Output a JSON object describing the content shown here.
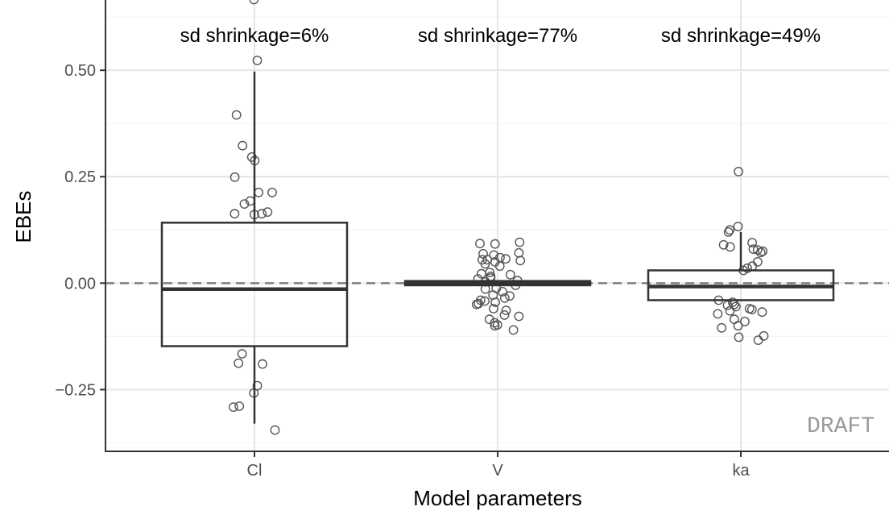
{
  "chart_data": {
    "type": "boxplot",
    "xlabel": "Model parameters",
    "ylabel": "EBEs",
    "categories": [
      "Cl",
      "V",
      "ka"
    ],
    "ylim": [
      -0.395,
      0.665
    ],
    "yticks": [
      -0.25,
      0.0,
      0.25,
      0.5
    ],
    "ytick_labels": [
      "−0.25",
      "0.00",
      "0.25",
      "0.50"
    ],
    "reference_line": 0,
    "grid": true,
    "watermark": "DRAFT",
    "annotations": [
      "sd shrinkage=6%",
      "sd shrinkage=77%",
      "sd shrinkage=49%"
    ],
    "boxes": [
      {
        "category": "Cl",
        "whisker_low": -0.33,
        "q1": -0.148,
        "median": -0.014,
        "q3": 0.142,
        "whisker_high": 0.497
      },
      {
        "category": "V",
        "whisker_low": -0.005,
        "q1": -0.005,
        "median": 0.0,
        "q3": 0.005,
        "whisker_high": 0.005
      },
      {
        "category": "ka",
        "whisker_low": -0.04,
        "q1": -0.04,
        "median": -0.008,
        "q3": 0.03,
        "whisker_high": 0.12
      }
    ],
    "points": [
      {
        "category": "Cl",
        "values": [
          0.666,
          0.523,
          0.395,
          0.323,
          0.296,
          0.288,
          0.249,
          0.213,
          0.213,
          0.193,
          0.186,
          0.167,
          0.163,
          0.163,
          0.161,
          -0.166,
          -0.19,
          -0.188,
          -0.241,
          -0.258,
          -0.289,
          -0.291,
          -0.345
        ]
      },
      {
        "category": "V",
        "values": [
          0.096,
          0.093,
          0.092,
          0.071,
          0.069,
          0.066,
          0.06,
          0.057,
          0.055,
          0.055,
          0.053,
          0.05,
          0.045,
          0.04,
          0.025,
          0.022,
          0.02,
          0.016,
          0.012,
          0.01,
          0.006,
          0.003,
          -0.005,
          -0.012,
          -0.014,
          -0.02,
          -0.028,
          -0.03,
          -0.035,
          -0.04,
          -0.042,
          -0.045,
          -0.048,
          -0.05,
          -0.06,
          -0.064,
          -0.075,
          -0.078,
          -0.085,
          -0.093,
          -0.098,
          -0.1,
          -0.11
        ]
      },
      {
        "category": "ka",
        "values": [
          0.262,
          0.133,
          0.125,
          0.12,
          0.095,
          0.09,
          0.085,
          0.08,
          0.078,
          0.075,
          0.072,
          0.05,
          0.04,
          0.035,
          0.03,
          -0.04,
          -0.045,
          -0.05,
          -0.052,
          -0.055,
          -0.06,
          -0.062,
          -0.065,
          -0.068,
          -0.072,
          -0.085,
          -0.09,
          -0.1,
          -0.105,
          -0.124,
          -0.127,
          -0.134
        ]
      }
    ]
  }
}
